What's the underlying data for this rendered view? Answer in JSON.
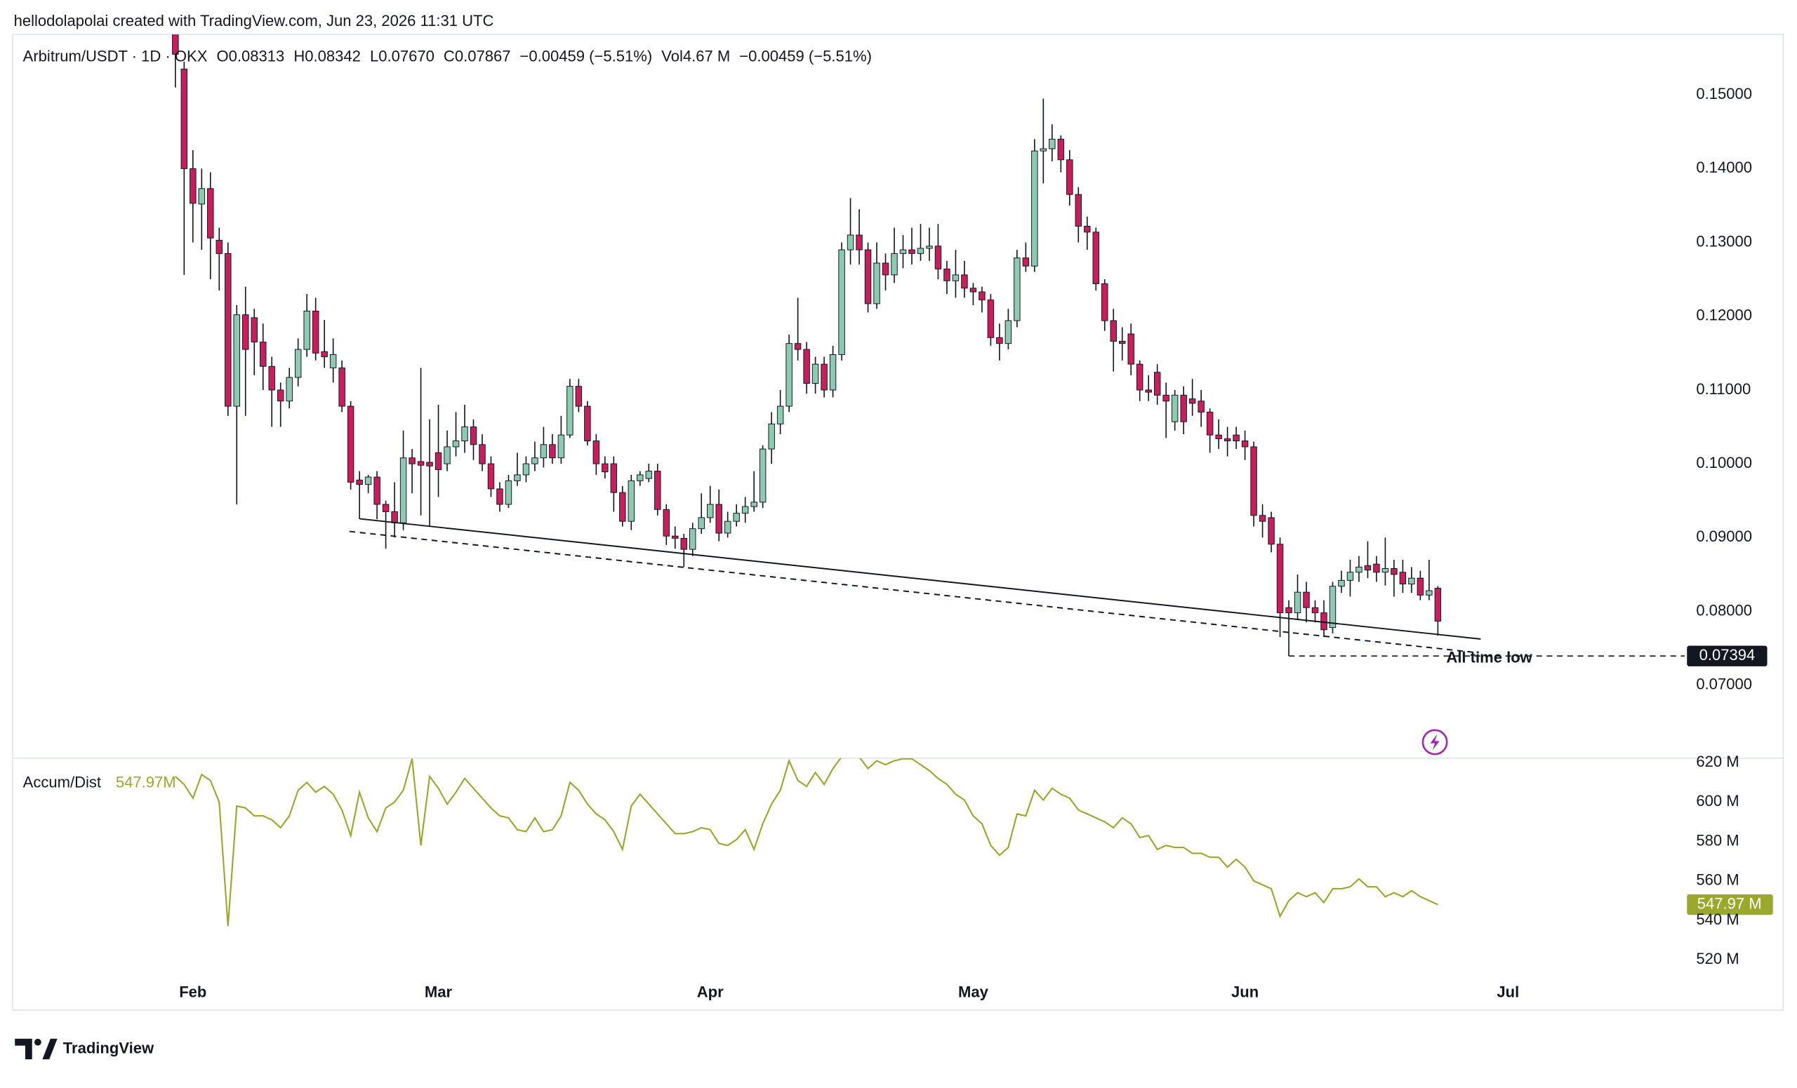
{
  "header": {
    "credit": "hellodolapolai created with TradingView.com, Jun 23, 2026 11:31 UTC",
    "legend": [
      "O0.08313",
      "H0.08342",
      "L0.07670",
      "C0.07867",
      "−0.00459 (−5.51%)",
      "Vol4.67 M",
      "−0.00459 (−5.51%)"
    ]
  },
  "footer": {
    "logo": "TradingView"
  },
  "chart_data": {
    "type": "candlestick",
    "grid": false,
    "categories": [
      null,
      null,
      "Feb",
      null,
      null,
      null,
      null,
      null,
      null,
      null,
      null,
      null,
      null,
      null,
      null,
      null,
      null,
      null,
      null,
      null,
      null,
      null,
      null,
      null,
      null,
      null,
      null,
      null,
      null,
      null,
      "Mar",
      null,
      null,
      null,
      null,
      null,
      null,
      null,
      null,
      null,
      null,
      null,
      null,
      null,
      null,
      null,
      null,
      null,
      null,
      null,
      null,
      null,
      null,
      null,
      null,
      null,
      null,
      null,
      null,
      null,
      null,
      "Apr",
      null,
      null,
      null,
      null,
      null,
      null,
      null,
      null,
      null,
      null,
      null,
      null,
      null,
      null,
      null,
      null,
      null,
      null,
      null,
      null,
      null,
      null,
      null,
      null,
      null,
      null,
      null,
      null,
      null,
      "May",
      null,
      null,
      null,
      null,
      null,
      null,
      null,
      null,
      null,
      null,
      null,
      null,
      null,
      null,
      null,
      null,
      null,
      null,
      null,
      null,
      null,
      null,
      null,
      null,
      null,
      null,
      null,
      null,
      null,
      null,
      "Jun",
      null,
      null,
      null,
      null,
      null,
      null,
      null,
      null,
      null,
      null,
      null,
      null,
      null,
      null,
      null,
      null,
      null,
      null,
      null,
      null,
      null,
      null,
      null,
      null,
      null,
      null,
      null,
      null,
      null,
      "Jul"
    ],
    "ylim": [
      0.0601,
      0.1582
    ],
    "yticks": [
      {
        "value": 0.07,
        "label": "0.07000"
      },
      {
        "value": 0.08,
        "label": "0.08000"
      },
      {
        "value": 0.09,
        "label": "0.09000"
      },
      {
        "value": 0.1,
        "label": "0.10000"
      },
      {
        "value": 0.11,
        "label": "0.11000"
      },
      {
        "value": 0.12,
        "label": "0.12000"
      },
      {
        "value": 0.13,
        "label": "0.13000"
      },
      {
        "value": 0.14,
        "label": "0.14000"
      },
      {
        "value": 0.15,
        "label": "0.15000"
      }
    ],
    "y2lim": [
      510.1,
      622.3
    ],
    "y2ticks": [
      {
        "value": 520,
        "label": "520 M"
      },
      {
        "value": 540,
        "label": "540 M"
      },
      {
        "value": 560,
        "label": "560 M"
      },
      {
        "value": 580,
        "label": "580 M"
      },
      {
        "value": 600,
        "label": "600 M"
      },
      {
        "value": 620,
        "label": "620 M"
      }
    ],
    "annotations": {
      "atl": {
        "value": 0.07394,
        "text": "All time low"
      },
      "y2_last_label": "547.97 M",
      "y2_legend_value": "547.97M"
    },
    "series": [
      {
        "name": "Arbitrum/USDT · 1D · OKX",
        "up_color": "#8ec9b2",
        "down_color": "#c81e5b",
        "open": [
          0.16,
          0.1535,
          0.14,
          0.1352,
          0.1373,
          0.1303,
          0.1285,
          0.1078,
          0.1202,
          0.1198,
          0.1165,
          0.1132,
          0.11,
          0.1085,
          0.1117,
          0.1155,
          0.1207,
          0.1152,
          0.113,
          0.113,
          0.1078,
          0.0978,
          0.0972,
          0.0982,
          0.0945,
          0.0935,
          0.092,
          0.1008,
          0.1003,
          0.1002,
          0.1015,
          0.1,
          0.1023,
          0.1031,
          0.105,
          0.1026,
          0.1,
          0.0966,
          0.0945,
          0.0977,
          0.0985,
          0.1,
          0.1008,
          0.1026,
          0.1008,
          0.1039,
          0.1105,
          0.1078,
          0.1031,
          0.1,
          0.1,
          0.0961,
          0.0922,
          0.0977,
          0.098,
          0.099,
          0.0938,
          0.0902,
          0.0899,
          0.0884,
          0.0912,
          0.0927,
          0.0945,
          0.0906,
          0.0922,
          0.0933,
          0.0942,
          0.0948,
          0.102,
          0.1054,
          0.1078,
          0.1163,
          0.1155,
          0.1109,
          0.1135,
          0.11,
          0.1148,
          0.129,
          0.131,
          0.129,
          0.1217,
          0.1272,
          0.1256,
          0.1285,
          0.129,
          0.1285,
          0.1292,
          0.1295,
          0.1264,
          0.1248,
          0.1256,
          0.1238,
          0.1233,
          0.1222,
          0.1171,
          0.1163,
          0.1194,
          0.1279,
          0.1268,
          0.1424,
          0.1427,
          0.144,
          0.1412,
          0.1365,
          0.1322,
          0.1314,
          0.1244,
          0.1194,
          0.1166,
          0.1176,
          0.1135,
          0.11,
          0.1124,
          0.1093,
          0.1057,
          0.1093,
          0.1088,
          0.1085,
          0.107,
          0.1039,
          0.1034,
          0.1039,
          0.1031,
          0.1023,
          0.093,
          0.0927,
          0.0891,
          0.0805,
          0.0798,
          0.0826,
          0.0805,
          0.0798,
          0.0778,
          0.0834,
          0.0842,
          0.0853,
          0.0862,
          0.0864,
          0.0853,
          0.0858,
          0.0853,
          0.0837,
          0.0845,
          0.0822,
          0.08313,
          null,
          null,
          null,
          null,
          null,
          null,
          null,
          null
        ],
        "high": [
          0.163,
          0.1545,
          0.1425,
          0.14,
          0.1395,
          0.132,
          0.13,
          0.1215,
          0.124,
          0.121,
          0.119,
          0.1145,
          0.111,
          0.113,
          0.117,
          0.123,
          0.1225,
          0.1195,
          0.117,
          0.114,
          0.1085,
          0.099,
          0.0985,
          0.099,
          0.095,
          0.0975,
          0.1045,
          0.102,
          0.113,
          0.106,
          0.108,
          0.1045,
          0.107,
          0.108,
          0.106,
          0.104,
          0.101,
          0.0975,
          0.0985,
          0.1015,
          0.101,
          0.103,
          0.105,
          0.104,
          0.1065,
          0.1115,
          0.1115,
          0.1085,
          0.104,
          0.101,
          0.101,
          0.097,
          0.0985,
          0.099,
          0.1,
          0.1,
          0.0945,
          0.0915,
          0.0905,
          0.092,
          0.096,
          0.097,
          0.0965,
          0.0935,
          0.0945,
          0.0955,
          0.099,
          0.1025,
          0.107,
          0.11,
          0.1175,
          0.1225,
          0.1165,
          0.1145,
          0.1145,
          0.116,
          0.13,
          0.136,
          0.1345,
          0.13,
          0.13,
          0.1285,
          0.132,
          0.131,
          0.132,
          0.1325,
          0.132,
          0.1325,
          0.1275,
          0.129,
          0.1275,
          0.1245,
          0.124,
          0.123,
          0.119,
          0.121,
          0.129,
          0.13,
          0.144,
          0.1495,
          0.146,
          0.1445,
          0.1425,
          0.1375,
          0.1335,
          0.132,
          0.125,
          0.121,
          0.1185,
          0.119,
          0.114,
          0.112,
          0.1135,
          0.111,
          0.11,
          0.1105,
          0.1115,
          0.11,
          0.1075,
          0.106,
          0.105,
          0.105,
          0.1045,
          0.103,
          0.0945,
          0.0935,
          0.09,
          0.0815,
          0.085,
          0.084,
          0.0815,
          0.0815,
          0.084,
          0.0855,
          0.087,
          0.0875,
          0.0895,
          0.0875,
          0.09,
          0.087,
          0.087,
          0.086,
          0.0855,
          0.087,
          0.08342,
          null,
          null,
          null,
          null,
          null,
          null,
          null,
          null
        ],
        "low": [
          0.151,
          0.1256,
          0.13,
          0.129,
          0.125,
          0.1235,
          0.1065,
          0.0945,
          0.1065,
          0.112,
          0.11,
          0.105,
          0.105,
          0.1075,
          0.1105,
          0.1145,
          0.114,
          0.113,
          0.111,
          0.107,
          0.0965,
          0.0925,
          0.096,
          0.0925,
          0.0885,
          0.09,
          0.091,
          0.096,
          0.093,
          0.0915,
          0.0955,
          0.099,
          0.101,
          0.1015,
          0.1005,
          0.099,
          0.0955,
          0.0935,
          0.094,
          0.097,
          0.0975,
          0.099,
          0.0995,
          0.1,
          0.1,
          0.1035,
          0.107,
          0.1025,
          0.0985,
          0.098,
          0.0935,
          0.0915,
          0.091,
          0.097,
          0.0975,
          0.093,
          0.089,
          0.0885,
          0.086,
          0.0875,
          0.0905,
          0.092,
          0.0895,
          0.09,
          0.0915,
          0.092,
          0.0935,
          0.094,
          0.1,
          0.104,
          0.107,
          0.114,
          0.1095,
          0.1095,
          0.109,
          0.109,
          0.114,
          0.127,
          0.127,
          0.1205,
          0.121,
          0.1235,
          0.1245,
          0.1265,
          0.127,
          0.1275,
          0.1275,
          0.125,
          0.123,
          0.1225,
          0.1225,
          0.1215,
          0.1205,
          0.116,
          0.114,
          0.1155,
          0.1185,
          0.126,
          0.126,
          0.138,
          0.141,
          0.1395,
          0.135,
          0.13,
          0.129,
          0.1235,
          0.118,
          0.1125,
          0.114,
          0.112,
          0.1085,
          0.1085,
          0.108,
          0.1035,
          0.1045,
          0.104,
          0.1065,
          0.105,
          0.1015,
          0.102,
          0.101,
          0.102,
          0.1005,
          0.0915,
          0.09,
          0.088,
          0.0765,
          0.07394,
          0.079,
          0.0785,
          0.0785,
          0.0765,
          0.077,
          0.0825,
          0.082,
          0.084,
          0.0845,
          0.084,
          0.0835,
          0.082,
          0.0825,
          0.0825,
          0.0815,
          0.0815,
          0.0767,
          null,
          null,
          null,
          null,
          null,
          null,
          null,
          null
        ],
        "close": [
          0.1555,
          0.14,
          0.1353,
          0.1373,
          0.1306,
          0.1285,
          0.1078,
          0.1202,
          0.1155,
          0.1165,
          0.1132,
          0.11,
          0.1085,
          0.1117,
          0.1155,
          0.1207,
          0.115,
          0.1145,
          0.1148,
          0.1078,
          0.0975,
          0.0972,
          0.0982,
          0.0945,
          0.0935,
          0.092,
          0.1008,
          0.1,
          0.0998,
          0.0997,
          0.0992,
          0.1023,
          0.1031,
          0.105,
          0.1026,
          0.1,
          0.0966,
          0.0945,
          0.0977,
          0.0985,
          0.1,
          0.1008,
          0.1026,
          0.1008,
          0.1039,
          0.1105,
          0.1078,
          0.1031,
          0.1,
          0.0989,
          0.0961,
          0.0922,
          0.0977,
          0.0985,
          0.099,
          0.0938,
          0.0902,
          0.0899,
          0.0884,
          0.0912,
          0.0927,
          0.0945,
          0.0906,
          0.0922,
          0.0933,
          0.0942,
          0.0948,
          0.102,
          0.1054,
          0.1078,
          0.1163,
          0.1155,
          0.1109,
          0.1135,
          0.11,
          0.1148,
          0.129,
          0.131,
          0.129,
          0.1217,
          0.1272,
          0.1256,
          0.1285,
          0.129,
          0.1285,
          0.1292,
          0.1295,
          0.1264,
          0.1248,
          0.1256,
          0.1238,
          0.1233,
          0.1222,
          0.1171,
          0.1163,
          0.1194,
          0.1279,
          0.1268,
          0.1424,
          0.1427,
          0.144,
          0.1412,
          0.1365,
          0.1322,
          0.1314,
          0.1244,
          0.1194,
          0.1166,
          0.1163,
          0.1135,
          0.11,
          0.1097,
          0.1093,
          0.1085,
          0.1093,
          0.1057,
          0.1082,
          0.107,
          0.1039,
          0.1034,
          0.1031,
          0.1031,
          0.1023,
          0.093,
          0.0922,
          0.0891,
          0.0798,
          0.0798,
          0.0826,
          0.0805,
          0.0798,
          0.0775,
          0.0834,
          0.0842,
          0.0853,
          0.086,
          0.0856,
          0.0853,
          0.0858,
          0.085,
          0.0837,
          0.0845,
          0.0822,
          0.0828,
          0.07867,
          null,
          null,
          null,
          null,
          null,
          null,
          null,
          null
        ]
      },
      {
        "name": "Accum/Dist",
        "axis": "y2",
        "color": "#9aa82c",
        "values": [
          613,
          609,
          602,
          614,
          611,
          600,
          537,
          598,
          597,
          593,
          593,
          591,
          587,
          593,
          606,
          610,
          605,
          608,
          604,
          596,
          583,
          605,
          592,
          585,
          597,
          600,
          606,
          622,
          578,
          613,
          607,
          599,
          605,
          612,
          607,
          602,
          597,
          593,
          592,
          586,
          585,
          592,
          585,
          586,
          593,
          610,
          606,
          599,
          594,
          591,
          585,
          576,
          598,
          604,
          599,
          594,
          589,
          584,
          584,
          585,
          587,
          586,
          579,
          578,
          581,
          586,
          576,
          589,
          599,
          606,
          621,
          611,
          608,
          615,
          609,
          617,
          623,
          625,
          623,
          617,
          621,
          619,
          621,
          622,
          622,
          619,
          616,
          612,
          609,
          604,
          601,
          593,
          589,
          578,
          573,
          577,
          594,
          593,
          606,
          601,
          607,
          604,
          602,
          596,
          594,
          592,
          590,
          587,
          592,
          589,
          582,
          583,
          576,
          578,
          577,
          577,
          574,
          574,
          572,
          572,
          567,
          571,
          567,
          560,
          558,
          556,
          542,
          550,
          554,
          552,
          554,
          549,
          556,
          556,
          557,
          561,
          557,
          557,
          552,
          554,
          552,
          555,
          552,
          550,
          547.97,
          null,
          null,
          null,
          null,
          null,
          null,
          null,
          null
        ]
      }
    ]
  }
}
